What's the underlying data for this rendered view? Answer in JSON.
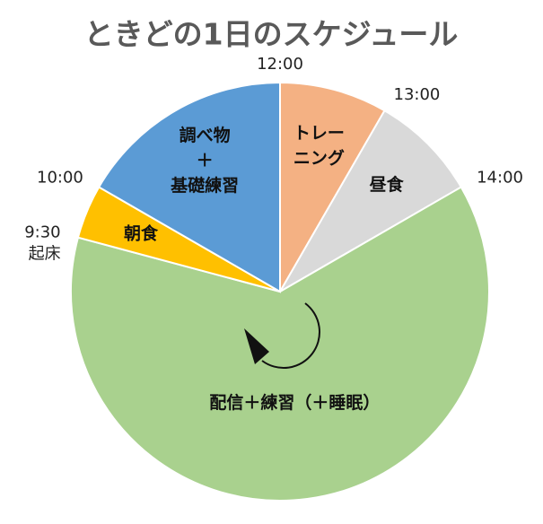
{
  "chart_data": {
    "type": "pie",
    "title": "ときどの1日のスケジュール",
    "categories": [
      [
        "トレー",
        "ニング"
      ],
      [
        "昼食"
      ],
      [
        "配信＋練習（＋睡眠）"
      ],
      [
        "朝食"
      ],
      [
        "調べ物",
        "＋",
        "基礎練習"
      ]
    ],
    "values": [
      1,
      1,
      7.5,
      0.5,
      2
    ],
    "colors": [
      "#f4b183",
      "#d9d9d9",
      "#a9d18e",
      "#ffc000",
      "#5b9bd5"
    ],
    "boundary_labels": [
      "12:00",
      "13:00",
      "14:00",
      "9:30",
      "10:00"
    ],
    "annotations": [
      {
        "boundary": 3,
        "text": "起床"
      }
    ]
  }
}
